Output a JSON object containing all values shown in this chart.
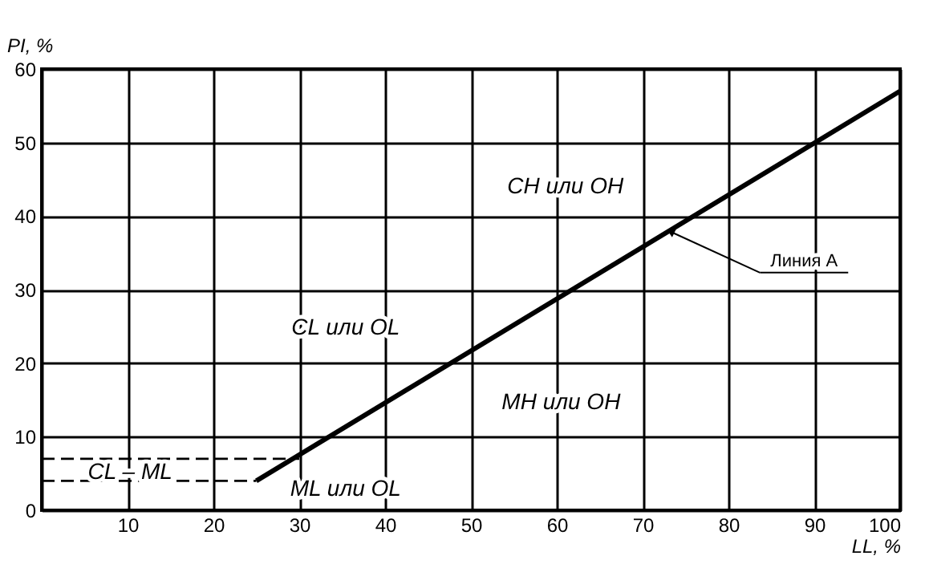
{
  "chart_data": {
    "type": "line",
    "xlabel": "LL, %",
    "ylabel": "PI, %",
    "xlim": [
      0,
      100
    ],
    "ylim": [
      0,
      60
    ],
    "xticks": [
      {
        "value": 0,
        "label": null
      },
      10,
      20,
      30,
      40,
      50,
      60,
      70,
      80,
      90,
      100
    ],
    "yticks": [
      0,
      10,
      20,
      30,
      40,
      50,
      60
    ],
    "grid": true,
    "legend": false,
    "marker": "none",
    "series": [
      {
        "color": "#000000",
        "x": [
          25,
          100
        ],
        "values": [
          4,
          57
        ],
        "line_style": "solid"
      },
      {
        "color": "#000000",
        "x": [
          0,
          30
        ],
        "values": [
          7,
          7
        ],
        "line_style": "dashed"
      },
      {
        "color": "#000000",
        "x": [
          0,
          25
        ],
        "values": [
          4,
          4
        ],
        "line_style": "dashed"
      }
    ],
    "annotations": [
      "CL или OL",
      "CH или OH",
      "MH или OH",
      "ML или OL",
      "CL – ML",
      {
        "text": "Линия А",
        "x": 73.4,
        "y": 37.8
      }
    ]
  }
}
